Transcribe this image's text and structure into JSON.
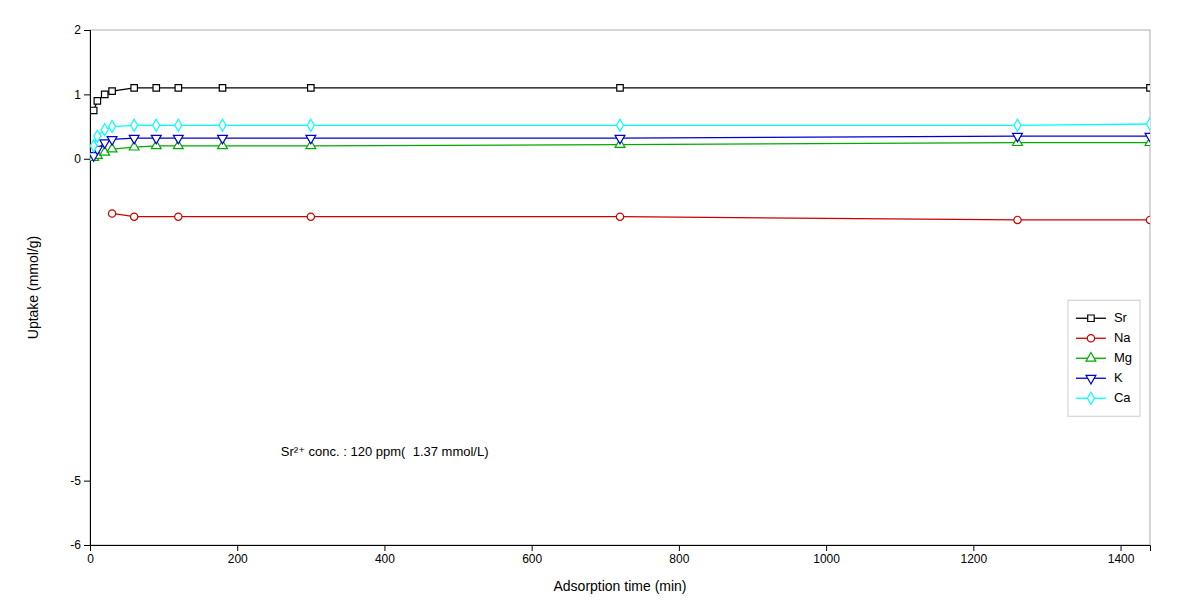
{
  "chart_data": {
    "type": "line",
    "xlabel": "Adsorption time (min)",
    "ylabel": "Uptake (mmol/g)",
    "xlim": [
      0,
      1440
    ],
    "ylim": [
      -6,
      2
    ],
    "xticks": [
      0,
      200,
      400,
      600,
      800,
      1000,
      1200,
      1400
    ],
    "yticks": [
      -6,
      -5,
      0,
      1,
      2
    ],
    "annotation": "Sr²⁺ conc. : 120 ppm(  1.37 mmol/L)",
    "legend": "lower right",
    "grid": false,
    "series": [
      {
        "name": "Sr",
        "color": "black",
        "marker": "square",
        "x": [
          5,
          10,
          20,
          30,
          60,
          90,
          120,
          180,
          300,
          720,
          1440
        ],
        "values": [
          0.75,
          0.9,
          1.0,
          1.05,
          1.1,
          1.1,
          1.1,
          1.1,
          1.1,
          1.1,
          1.1
        ]
      },
      {
        "name": "Na",
        "color": "#cc0000",
        "marker": "circle",
        "x": [
          30,
          60,
          120,
          300,
          720,
          1260,
          1440
        ],
        "values": [
          -0.85,
          -0.9,
          -0.9,
          -0.9,
          -0.9,
          -0.95,
          -0.95
        ]
      },
      {
        "name": "Mg",
        "color": "#00aa00",
        "marker": "triangle-up",
        "x": [
          5,
          10,
          20,
          30,
          60,
          90,
          120,
          180,
          300,
          720,
          1260,
          1440
        ],
        "values": [
          0.02,
          0.05,
          0.1,
          0.15,
          0.18,
          0.2,
          0.2,
          0.2,
          0.2,
          0.22,
          0.25,
          0.25
        ]
      },
      {
        "name": "K",
        "color": "#0000cc",
        "marker": "triangle-down",
        "x": [
          5,
          10,
          20,
          30,
          60,
          90,
          120,
          180,
          300,
          720,
          1260,
          1440
        ],
        "values": [
          0.05,
          0.15,
          0.25,
          0.3,
          0.32,
          0.32,
          0.32,
          0.32,
          0.32,
          0.32,
          0.35,
          0.35
        ]
      },
      {
        "name": "Ca",
        "color": "cyan",
        "marker": "diamond",
        "x": [
          5,
          10,
          20,
          30,
          60,
          90,
          120,
          180,
          300,
          720,
          1260,
          1440
        ],
        "values": [
          0.2,
          0.35,
          0.45,
          0.5,
          0.52,
          0.52,
          0.52,
          0.52,
          0.52,
          0.52,
          0.52,
          0.54
        ]
      }
    ]
  }
}
